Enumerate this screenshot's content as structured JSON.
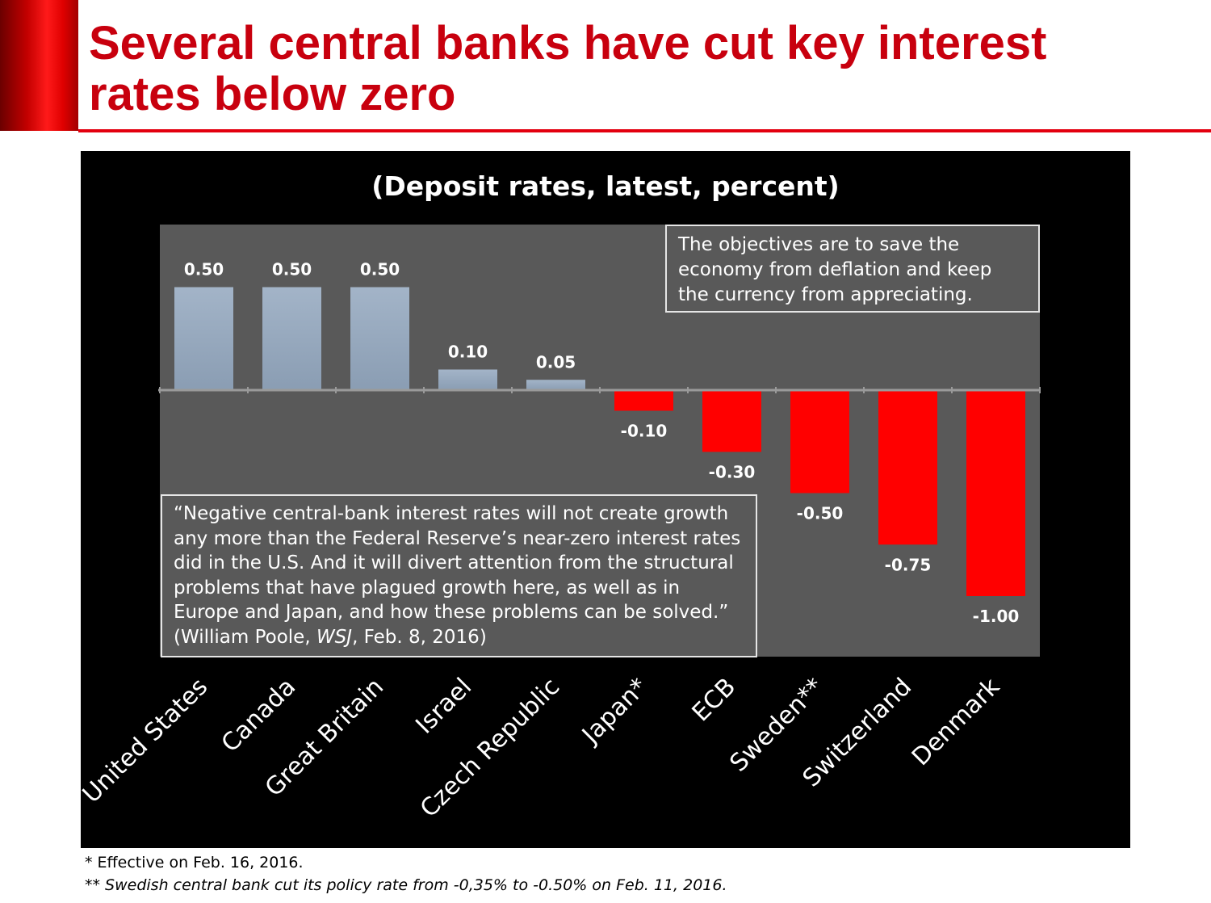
{
  "slide": {
    "title": "Several central banks have cut key interest rates below zero"
  },
  "colors": {
    "title_red": "#c8000e",
    "positive_bar": "#8a9db3",
    "negative_bar": "#ff0000",
    "plot_background": "#595959",
    "panel_background": "#000000"
  },
  "chart_data": {
    "type": "bar",
    "title": "(Deposit rates, latest, percent)",
    "categories": [
      "United States",
      "Canada",
      "Great Britain",
      "Israel",
      "Czech Republic",
      "Japan*",
      "ECB",
      "Sweden**",
      "Switzerland",
      "Denmark"
    ],
    "values": [
      0.5,
      0.5,
      0.5,
      0.1,
      0.05,
      -0.1,
      -0.3,
      -0.5,
      -0.75,
      -1.0
    ],
    "data_labels": [
      "0.50",
      "0.50",
      "0.50",
      "0.10",
      "0.05",
      "-0.10",
      "-0.30",
      "-0.50",
      "-0.75",
      "-1.00"
    ],
    "ylim": [
      -1.3,
      0.8
    ],
    "xlabel": "",
    "ylabel": "",
    "grid": false,
    "legend": "none"
  },
  "annotations": {
    "objectives": "The objectives are to save the economy from deflation and keep the currency from appreciating.",
    "quote_text": "“Negative central-bank interest rates will not create growth any more than the Federal Reserve’s near-zero interest rates did in the U.S. And it will divert attention from the structural problems that have plagued growth here, as well as in Europe and Japan, and how these problems can be solved.” (William Poole, ",
    "quote_source": "WSJ",
    "quote_date": ", Feb. 8, 2016)"
  },
  "footnotes": {
    "japan": "* Effective on Feb. 16, 2016.",
    "sweden": "** Swedish central bank cut its policy rate from -0,35% to -0.50% on Feb. 11, 2016."
  }
}
